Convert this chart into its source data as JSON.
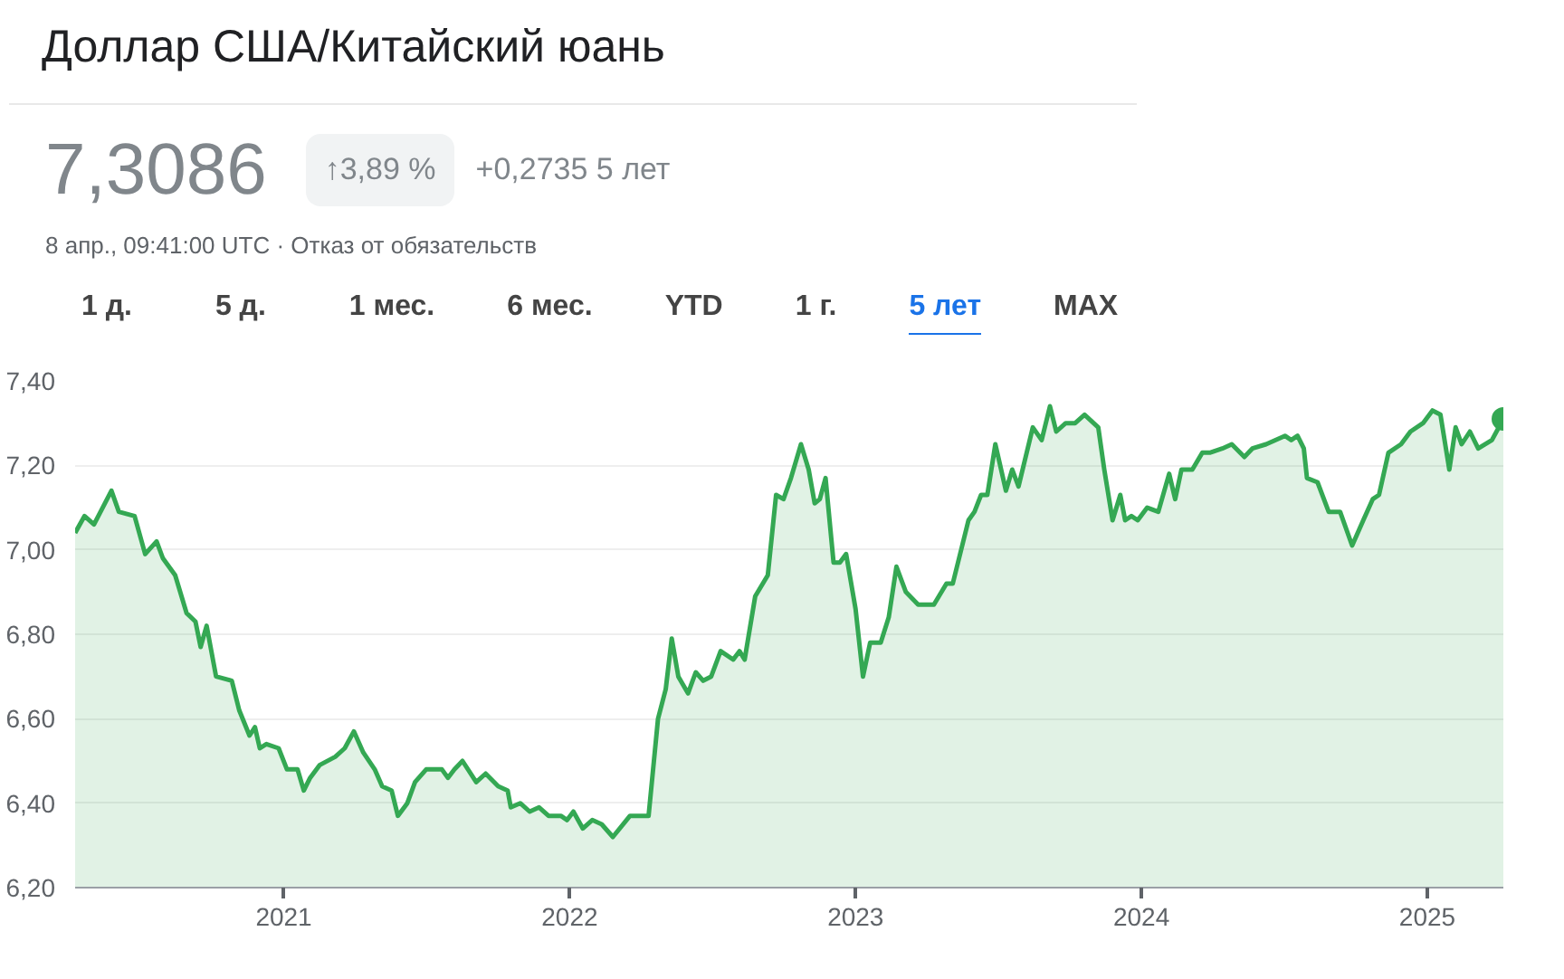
{
  "chart_data": {
    "type": "area",
    "title": "Доллар США/Китайский юань",
    "annotations": [
      "7,3086",
      "↑3,89 %",
      "+0,2735 5 лет",
      "8 апр., 09:41:00 UTC · Отказ от обязательств",
      "1 д.",
      "5 д.",
      "1 мес.",
      "6 мес.",
      "YTD",
      "1 г.",
      "5 лет",
      "MAX"
    ],
    "x": [
      2020.27,
      2020.303,
      2020.336,
      2020.397,
      2020.423,
      2020.478,
      2020.515,
      2020.555,
      2020.577,
      2020.62,
      2020.66,
      2020.691,
      2020.709,
      2020.73,
      2020.763,
      2020.818,
      2020.844,
      2020.88,
      2020.899,
      2020.916,
      2020.939,
      2020.982,
      2021.011,
      2021.048,
      2021.07,
      2021.092,
      2021.125,
      2021.18,
      2021.213,
      2021.245,
      2021.278,
      2021.318,
      2021.344,
      2021.377,
      2021.399,
      2021.432,
      2021.459,
      2021.498,
      2021.553,
      2021.574,
      2021.597,
      2021.625,
      2021.673,
      2021.706,
      2021.75,
      2021.783,
      2021.794,
      2021.827,
      2021.86,
      2021.893,
      2021.926,
      2021.969,
      2021.991,
      2022.013,
      2022.046,
      2022.079,
      2022.112,
      2022.151,
      2022.211,
      2022.276,
      2022.309,
      2022.336,
      2022.357,
      2022.38,
      2022.414,
      2022.441,
      2022.467,
      2022.495,
      2022.528,
      2022.572,
      2022.594,
      2022.612,
      2022.649,
      2022.693,
      2022.722,
      2022.748,
      2022.774,
      2022.809,
      2022.836,
      2022.857,
      2022.875,
      2022.895,
      2022.923,
      2022.945,
      2022.967,
      2023.0,
      2023.026,
      2023.051,
      2023.088,
      2023.116,
      2023.143,
      2023.176,
      2023.219,
      2023.274,
      2023.318,
      2023.34,
      2023.395,
      2023.416,
      2023.439,
      2023.461,
      2023.489,
      2023.526,
      2023.548,
      2023.57,
      2023.62,
      2023.651,
      2023.68,
      2023.702,
      2023.735,
      2023.768,
      2023.801,
      2023.849,
      2023.87,
      2023.899,
      2023.926,
      2023.943,
      2023.965,
      2023.987,
      2024.02,
      2024.059,
      2024.097,
      2024.118,
      2024.14,
      2024.178,
      2024.213,
      2024.239,
      2024.283,
      2024.316,
      2024.36,
      2024.388,
      2024.436,
      2024.502,
      2024.524,
      2024.546,
      2024.568,
      2024.579,
      2024.616,
      2024.655,
      2024.695,
      2024.737,
      2024.776,
      2024.809,
      2024.831,
      2024.864,
      2024.908,
      2024.941,
      2024.985,
      2025.018,
      2025.046,
      2025.077,
      2025.099,
      2025.12,
      2025.149,
      2025.178,
      2025.226,
      2025.266
    ],
    "series": [
      {
        "color": "#34a853",
        "values": [
          7.04,
          7.08,
          7.06,
          7.14,
          7.09,
          7.08,
          6.99,
          7.02,
          6.98,
          6.94,
          6.85,
          6.83,
          6.77,
          6.82,
          6.7,
          6.69,
          6.62,
          6.56,
          6.58,
          6.53,
          6.54,
          6.53,
          6.48,
          6.48,
          6.43,
          6.46,
          6.49,
          6.51,
          6.53,
          6.57,
          6.52,
          6.48,
          6.44,
          6.43,
          6.37,
          6.4,
          6.45,
          6.48,
          6.48,
          6.46,
          6.48,
          6.5,
          6.45,
          6.47,
          6.44,
          6.43,
          6.39,
          6.4,
          6.38,
          6.39,
          6.37,
          6.37,
          6.36,
          6.38,
          6.34,
          6.36,
          6.35,
          6.32,
          6.37,
          6.37,
          6.6,
          6.67,
          6.79,
          6.7,
          6.66,
          6.71,
          6.69,
          6.7,
          6.76,
          6.74,
          6.76,
          6.74,
          6.89,
          6.94,
          7.13,
          7.12,
          7.17,
          7.25,
          7.19,
          7.11,
          7.12,
          7.17,
          6.97,
          6.97,
          6.99,
          6.86,
          6.7,
          6.78,
          6.78,
          6.84,
          6.96,
          6.9,
          6.87,
          6.87,
          6.92,
          6.92,
          7.07,
          7.09,
          7.13,
          7.13,
          7.25,
          7.14,
          7.19,
          7.15,
          7.29,
          7.26,
          7.34,
          7.28,
          7.3,
          7.3,
          7.32,
          7.29,
          7.19,
          7.07,
          7.13,
          7.07,
          7.08,
          7.07,
          7.1,
          7.09,
          7.18,
          7.12,
          7.19,
          7.19,
          7.23,
          7.23,
          7.24,
          7.25,
          7.22,
          7.24,
          7.25,
          7.27,
          7.26,
          7.27,
          7.24,
          7.17,
          7.16,
          7.09,
          7.09,
          7.01,
          7.07,
          7.12,
          7.13,
          7.23,
          7.25,
          7.28,
          7.3,
          7.33,
          7.32,
          7.19,
          7.29,
          7.25,
          7.28,
          7.24,
          7.26,
          7.31
        ]
      }
    ],
    "xlim": [
      2020.27,
      2025.266
    ],
    "ylim": [
      6.2,
      7.4
    ],
    "xticks": [
      2021,
      2022,
      2023,
      2024,
      2025
    ],
    "yticks": [
      {
        "value": 6.2,
        "label": "6,20"
      },
      {
        "value": 6.4,
        "label": "6,40"
      },
      {
        "value": 6.6,
        "label": "6,60"
      },
      {
        "value": 6.8,
        "label": "6,80"
      },
      {
        "value": 7.0,
        "label": "7,00"
      },
      {
        "value": 7.2,
        "label": "7,20"
      },
      {
        "value": 7.4,
        "label": "7,40"
      }
    ],
    "grid": "y"
  }
}
